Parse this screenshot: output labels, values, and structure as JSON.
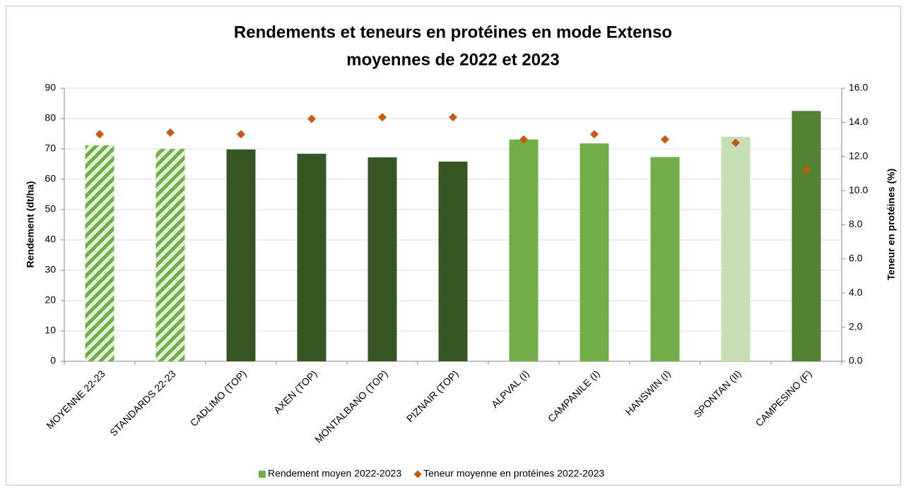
{
  "chart_data": {
    "type": "bar",
    "title": "Rendements et teneurs en protéines en mode Extenso",
    "subtitle": "moyennes de 2022 et 2023",
    "y_label": "Rendement (dt/ha)",
    "y2_label": "Teneur en protéines (%)",
    "categories": [
      "MOYENNE 22-23",
      "STANDARDS 22-23",
      "CADLIMO (TOP)",
      "AXEN (TOP)",
      "MONTALBANO (TOP)",
      "PIZNAIR (TOP)",
      "ALPVAL (I)",
      "CAMPANILE (I)",
      "HANSWIN  (I)",
      "SPONTAN  (II)",
      "CAMPESINO (F)"
    ],
    "series": [
      {
        "name": "Rendement moyen 2022-2023",
        "type": "bar",
        "color": "#70ad47",
        "colors": [
          "#e2efd9",
          "#e2efd9",
          "#375623",
          "#375623",
          "#375623",
          "#375623",
          "#70ad47",
          "#70ad47",
          "#70ad47",
          "#c5e0b4",
          "#548235"
        ],
        "hatched": [
          true,
          true,
          false,
          false,
          false,
          false,
          false,
          false,
          false,
          false,
          false
        ],
        "hatch_color": "#70ad47",
        "values": [
          71.2,
          70.0,
          69.8,
          68.4,
          67.2,
          65.8,
          73.1,
          71.8,
          67.3,
          74.0,
          82.5
        ]
      },
      {
        "name": "Teneur moyenne en protéines 2022-2023",
        "type": "scatter",
        "color": "#c55a11",
        "axis": "y2",
        "values": [
          13.3,
          13.4,
          13.3,
          14.2,
          14.3,
          14.3,
          13.0,
          13.3,
          13.0,
          12.8,
          11.2
        ]
      }
    ],
    "ylim": [
      0,
      90
    ],
    "yticks": [
      0,
      10,
      20,
      30,
      40,
      50,
      60,
      70,
      80,
      90
    ],
    "y2lim": [
      0,
      16
    ],
    "y2ticks": [
      {
        "value": 0,
        "label": "0.0"
      },
      {
        "value": 2,
        "label": "2.0"
      },
      {
        "value": 4,
        "label": "4.0"
      },
      {
        "value": 6,
        "label": "6.0"
      },
      {
        "value": 8,
        "label": "8.0"
      },
      {
        "value": 10,
        "label": "10.0"
      },
      {
        "value": 12,
        "label": "12.0"
      },
      {
        "value": 14,
        "label": "14.0"
      },
      {
        "value": 16,
        "label": "16.0"
      }
    ],
    "grid": true,
    "legend": "bottom"
  }
}
